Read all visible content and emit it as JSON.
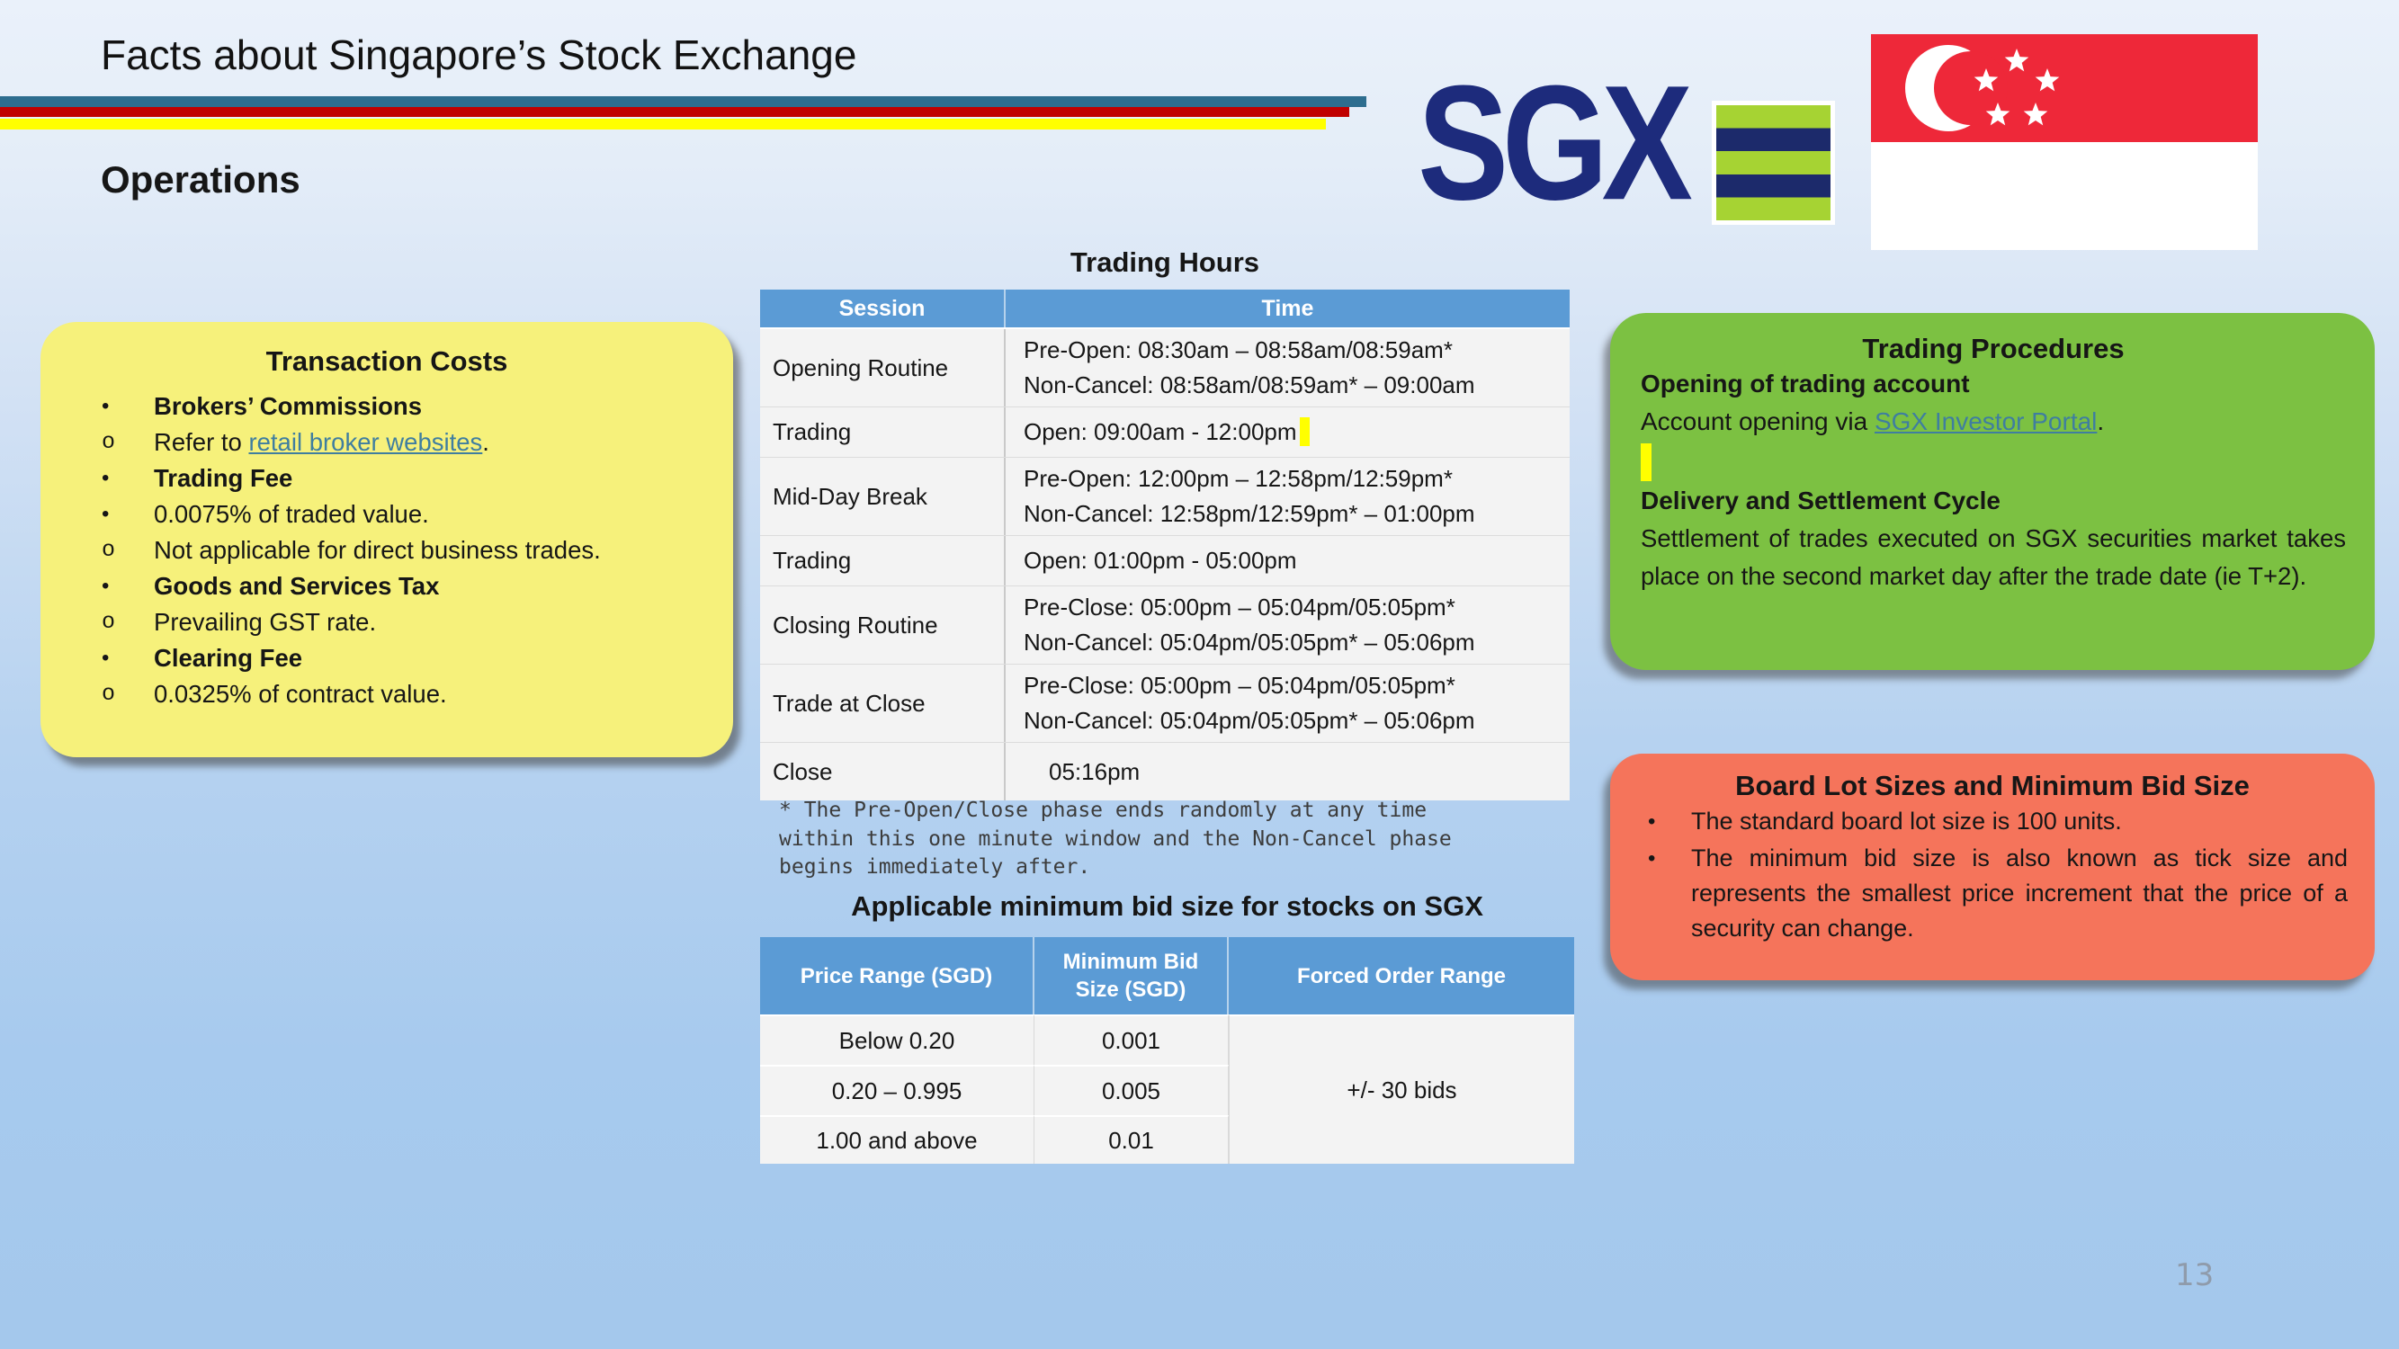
{
  "slide": {
    "title": "Facts about Singapore’s Stock Exchange",
    "section": "Operations",
    "page_number": "13"
  },
  "brand": {
    "sgx_logo_text": "SGX"
  },
  "colors": {
    "stripe-teal": "#2d6d8f",
    "stripe-red": "#c00000",
    "stripe-yellow": "#ffff00",
    "table-header": "#5b9bd5",
    "table-row": "#f3f3f3",
    "yellow-box": "#f6f17b",
    "green-box": "#7cc142",
    "salmon-box": "#f5745b",
    "link": "#3f7ea0",
    "sgx-navy": "#1d2b7c",
    "logo-green": "#a6d333",
    "logo-navy": "#1c2a6b",
    "flag-red": "#ee2839",
    "highlight": "#ffff00"
  },
  "transaction_costs": {
    "title": "Transaction Costs",
    "items": [
      {
        "marker": "•",
        "bold": true,
        "text": "Brokers’ Commissions"
      },
      {
        "marker": "o",
        "prefix": "Refer to ",
        "link": "retail broker websites",
        "suffix": "."
      },
      {
        "marker": "•",
        "bold": true,
        "text": "Trading Fee"
      },
      {
        "marker": "•",
        "text": "0.0075% of traded value."
      },
      {
        "marker": "o",
        "text": "Not applicable for direct business trades."
      },
      {
        "marker": "•",
        "bold": true,
        "text": "Goods and Services Tax"
      },
      {
        "marker": "o",
        "text": "Prevailing GST rate."
      },
      {
        "marker": "•",
        "bold": true,
        "text": "Clearing Fee"
      },
      {
        "marker": "o",
        "text": "0.0325% of contract value."
      }
    ]
  },
  "trading_hours": {
    "title": "Trading Hours",
    "columns": [
      "Session",
      "Time"
    ],
    "rows": [
      {
        "session": "Opening Routine",
        "time_lines": [
          "Pre-Open: 08:30am – 08:58am/08:59am*",
          "Non-Cancel: 08:58am/08:59am* – 09:00am"
        ]
      },
      {
        "session": "Trading",
        "time_lines": [
          "Open: 09:00am - 12:00pm"
        ],
        "highlight_cursor": true
      },
      {
        "session": "Mid-Day Break",
        "time_lines": [
          "Pre-Open: 12:00pm – 12:58pm/12:59pm*",
          "Non-Cancel: 12:58pm/12:59pm* – 01:00pm"
        ]
      },
      {
        "session": "Trading",
        "time_lines": [
          "Open: 01:00pm - 05:00pm"
        ]
      },
      {
        "session": "Closing Routine",
        "time_lines": [
          "Pre-Close: 05:00pm – 05:04pm/05:05pm*",
          "Non-Cancel: 05:04pm/05:05pm* – 05:06pm"
        ]
      },
      {
        "session": "Trade at Close",
        "time_lines": [
          "Pre-Close: 05:00pm – 05:04pm/05:05pm*",
          "Non-Cancel: 05:04pm/05:05pm* – 05:06pm"
        ]
      },
      {
        "session": "Close",
        "time_lines": [
          "05:16pm"
        ],
        "indent": true
      }
    ],
    "footnote": "* The Pre-Open/Close phase ends randomly at any time\nwithin this one minute window and the Non-Cancel phase\nbegins immediately after."
  },
  "min_bid_table": {
    "title": "Applicable minimum bid size for stocks on SGX",
    "columns": [
      "Price Range (SGD)",
      "Minimum Bid Size (SGD)",
      "Forced Order Range"
    ],
    "rows": [
      [
        "Below 0.20",
        "0.001"
      ],
      [
        "0.20 – 0.995",
        "0.005"
      ],
      [
        "1.00 and above",
        "0.01"
      ]
    ],
    "merged_cell": "+/- 30 bids"
  },
  "trading_procedures": {
    "title": "Trading Procedures",
    "sections": [
      {
        "heading": "Opening of trading account",
        "prefix": "Account opening via ",
        "link": "SGX Investor Portal",
        "suffix": "."
      },
      {
        "heading": "Delivery and Settlement Cycle",
        "text": "Settlement of trades executed on SGX securities market takes place on the second market day after the trade date (ie T+2)."
      }
    ]
  },
  "board_lot": {
    "title": "Board Lot Sizes and Minimum Bid Size",
    "bullets": [
      "The standard board lot size is 100 units.",
      "The minimum bid size is also known as tick size and represents the smallest price increment that the price of a security can change."
    ]
  }
}
